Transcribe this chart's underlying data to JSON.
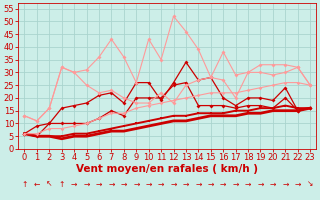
{
  "xlabel": "Vent moyen/en rafales ( km/h )",
  "background_color": "#cceee8",
  "grid_color": "#aad4ce",
  "x_values": [
    0,
    1,
    2,
    3,
    4,
    5,
    6,
    7,
    8,
    9,
    10,
    11,
    12,
    13,
    14,
    15,
    16,
    17,
    18,
    19,
    20,
    21,
    22,
    23
  ],
  "series": [
    {
      "y": [
        6,
        9,
        10,
        16,
        17,
        18,
        21,
        22,
        18,
        26,
        26,
        19,
        26,
        34,
        27,
        28,
        20,
        17,
        20,
        20,
        19,
        24,
        15,
        16
      ],
      "color": "#cc0000",
      "lw": 0.9,
      "marker": "D",
      "ms": 2.0,
      "alpha": 1.0
    },
    {
      "y": [
        6,
        5,
        10,
        10,
        10,
        10,
        12,
        15,
        13,
        20,
        20,
        20,
        25,
        26,
        17,
        17,
        17,
        16,
        17,
        17,
        16,
        20,
        15,
        16
      ],
      "color": "#cc0000",
      "lw": 0.9,
      "marker": "D",
      "ms": 2.0,
      "alpha": 1.0
    },
    {
      "y": [
        6,
        5,
        5,
        5,
        6,
        6,
        7,
        8,
        9,
        10,
        11,
        12,
        13,
        13,
        14,
        14,
        14,
        15,
        15,
        16,
        16,
        17,
        16,
        16
      ],
      "color": "#cc0000",
      "lw": 1.4,
      "marker": "s",
      "ms": 1.5,
      "alpha": 1.0
    },
    {
      "y": [
        6,
        5,
        5,
        4,
        5,
        5,
        6,
        7,
        7,
        8,
        9,
        10,
        11,
        11,
        12,
        13,
        13,
        13,
        14,
        14,
        15,
        15,
        15,
        16
      ],
      "color": "#cc0000",
      "lw": 2.0,
      "marker": null,
      "ms": 0,
      "alpha": 1.0
    },
    {
      "y": [
        13,
        11,
        16,
        32,
        30,
        31,
        36,
        43,
        36,
        26,
        43,
        35,
        52,
        46,
        39,
        28,
        38,
        29,
        30,
        33,
        33,
        33,
        32,
        25
      ],
      "color": "#ff9999",
      "lw": 0.8,
      "marker": "D",
      "ms": 2.0,
      "alpha": 1.0
    },
    {
      "y": [
        13,
        11,
        16,
        32,
        30,
        25,
        22,
        23,
        20,
        18,
        18,
        22,
        18,
        25,
        27,
        28,
        27,
        20,
        30,
        30,
        29,
        30,
        32,
        25
      ],
      "color": "#ff9999",
      "lw": 0.8,
      "marker": "D",
      "ms": 2.0,
      "alpha": 1.0
    },
    {
      "y": [
        6,
        6,
        8,
        8,
        9,
        10,
        12,
        14,
        14,
        16,
        17,
        18,
        19,
        20,
        21,
        22,
        22,
        22,
        23,
        24,
        25,
        26,
        26,
        25
      ],
      "color": "#ff9999",
      "lw": 0.8,
      "marker": "D",
      "ms": 1.8,
      "alpha": 1.0
    }
  ],
  "ylim": [
    0,
    57
  ],
  "yticks": [
    0,
    5,
    10,
    15,
    20,
    25,
    30,
    35,
    40,
    45,
    50,
    55
  ],
  "xlim": [
    -0.5,
    23.5
  ],
  "xticks": [
    0,
    1,
    2,
    3,
    4,
    5,
    6,
    7,
    8,
    9,
    10,
    11,
    12,
    13,
    14,
    15,
    16,
    17,
    18,
    19,
    20,
    21,
    22,
    23
  ],
  "xlabel_color": "#cc0000",
  "xlabel_fontsize": 7.5,
  "tick_fontsize": 6,
  "tick_color": "#cc0000",
  "arrow_symbols": [
    "↑",
    "←",
    "↖",
    "↑",
    "→",
    "→",
    "→",
    "→",
    "→",
    "→",
    "→",
    "→",
    "→",
    "→",
    "→",
    "→",
    "→",
    "→",
    "→",
    "→",
    "→",
    "→",
    "→",
    "↘"
  ]
}
